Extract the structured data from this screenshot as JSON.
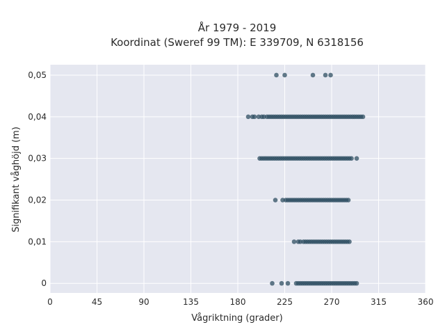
{
  "chart_data": {
    "type": "scatter",
    "title_line1": "År 1979 - 2019",
    "title_line2": "Koordinat (Sweref 99 TM): E 339709, N 6318156",
    "xlabel": "Vågriktning (grader)",
    "ylabel": "Signifikant våghöjd (m)",
    "xlim": [
      0,
      360
    ],
    "ylim": [
      -0.0023,
      0.0525
    ],
    "x_ticks": [
      0,
      45,
      90,
      135,
      180,
      225,
      270,
      315,
      360
    ],
    "x_tick_labels": [
      "0",
      "45",
      "90",
      "135",
      "180",
      "225",
      "270",
      "315",
      "360"
    ],
    "y_ticks": [
      0,
      0.01,
      0.02,
      0.03,
      0.04,
      0.05
    ],
    "y_tick_labels": [
      "0",
      "0,01",
      "0,02",
      "0,03",
      "0,04",
      "0,05"
    ],
    "grid": true,
    "legend": "none",
    "marker_color": "#2e4d62",
    "plot_background": "#e5e7f0",
    "groups": [
      {
        "y": 0.05,
        "x": [
          217,
          225,
          252,
          264,
          269
        ]
      },
      {
        "y": 0.04,
        "x": [
          190,
          194,
          196,
          200,
          203,
          205,
          208,
          210,
          212,
          214,
          216,
          218,
          220,
          222,
          224,
          226,
          228,
          230,
          232,
          234,
          236,
          238,
          240,
          242,
          244,
          246,
          248,
          250,
          252,
          254,
          256,
          258,
          260,
          262,
          264,
          266,
          268,
          270,
          272,
          274,
          276,
          278,
          280,
          282,
          284,
          286,
          288,
          290,
          292,
          294,
          296,
          298,
          300
        ]
      },
      {
        "y": 0.03,
        "x": [
          201,
          203,
          205,
          207,
          209,
          211,
          213,
          215,
          217,
          219,
          221,
          223,
          225,
          227,
          229,
          231,
          233,
          235,
          237,
          239,
          241,
          243,
          245,
          247,
          249,
          251,
          253,
          255,
          257,
          259,
          261,
          263,
          265,
          267,
          269,
          271,
          273,
          275,
          277,
          279,
          281,
          283,
          285,
          287,
          289,
          294
        ]
      },
      {
        "y": 0.02,
        "x": [
          216,
          223,
          226,
          228,
          230,
          232,
          234,
          236,
          238,
          240,
          242,
          244,
          246,
          248,
          250,
          252,
          254,
          256,
          258,
          260,
          262,
          264,
          266,
          268,
          270,
          272,
          274,
          276,
          278,
          280,
          282,
          284,
          286
        ]
      },
      {
        "y": 0.01,
        "x": [
          234,
          238,
          240,
          243,
          245,
          247,
          249,
          251,
          253,
          255,
          257,
          259,
          261,
          263,
          265,
          267,
          269,
          271,
          273,
          275,
          277,
          279,
          281,
          283,
          285,
          287
        ]
      },
      {
        "y": 0.0,
        "x": [
          213,
          222,
          228,
          236,
          238,
          240,
          242,
          244,
          246,
          248,
          250,
          252,
          254,
          256,
          258,
          260,
          262,
          264,
          266,
          268,
          270,
          272,
          274,
          276,
          278,
          280,
          282,
          284,
          286,
          288,
          290,
          292,
          294
        ]
      }
    ]
  }
}
